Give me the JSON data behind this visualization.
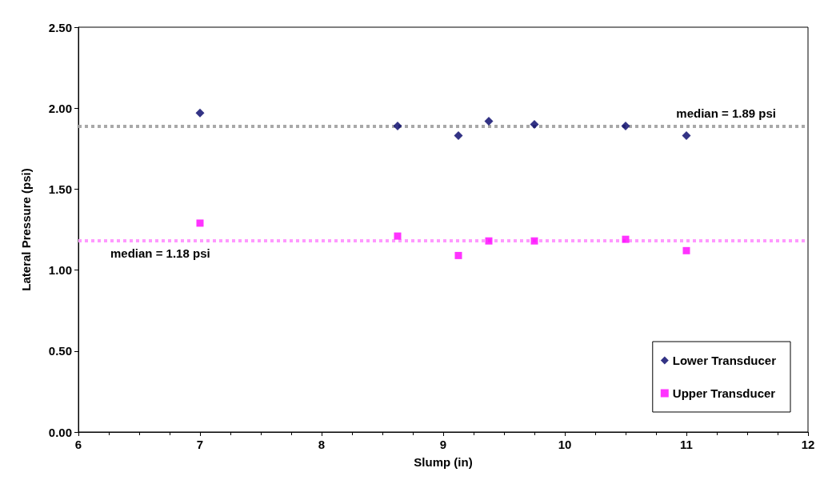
{
  "chart_data": {
    "type": "scatter",
    "xlabel": "Slump (in)",
    "ylabel": "Lateral Pressure (psi)",
    "xlim": [
      6,
      12
    ],
    "xticks": [
      6,
      7,
      8,
      9,
      10,
      11,
      12
    ],
    "ylim": [
      0,
      2.5
    ],
    "yticks": [
      {
        "value": 0,
        "label": "0.00"
      },
      {
        "value": 0.5,
        "label": "0.50"
      },
      {
        "value": 1,
        "label": "1.00"
      },
      {
        "value": 1.5,
        "label": "1.50"
      },
      {
        "value": 2,
        "label": "2.00"
      },
      {
        "value": 2.5,
        "label": "2.50"
      }
    ],
    "grid": false,
    "legend": "bottom right",
    "series": [
      {
        "name": "Lower Transducer",
        "color": "#000066",
        "marker": "diamond",
        "x": [
          7,
          8.625,
          9.125,
          9.375,
          9.75,
          10.5,
          11
        ],
        "values": [
          1.97,
          1.89,
          1.83,
          1.92,
          1.9,
          1.89,
          1.83
        ]
      },
      {
        "name": "Upper Transducer",
        "color": "#ff00ff",
        "marker": "square",
        "x": [
          7,
          8.625,
          9.125,
          9.375,
          9.75,
          10.5,
          11
        ],
        "values": [
          1.29,
          1.21,
          1.09,
          1.18,
          1.18,
          1.19,
          1.12
        ]
      }
    ],
    "ref_lines": [
      {
        "axis": "y",
        "value": 1.89,
        "label": "median = 1.89 psi",
        "color": "#a8a8a8",
        "line_style": "dotted"
      },
      {
        "axis": "y",
        "value": 1.18,
        "label": "median = 1.18 psi",
        "color": "#ff99ff",
        "line_style": "dotted"
      }
    ]
  }
}
